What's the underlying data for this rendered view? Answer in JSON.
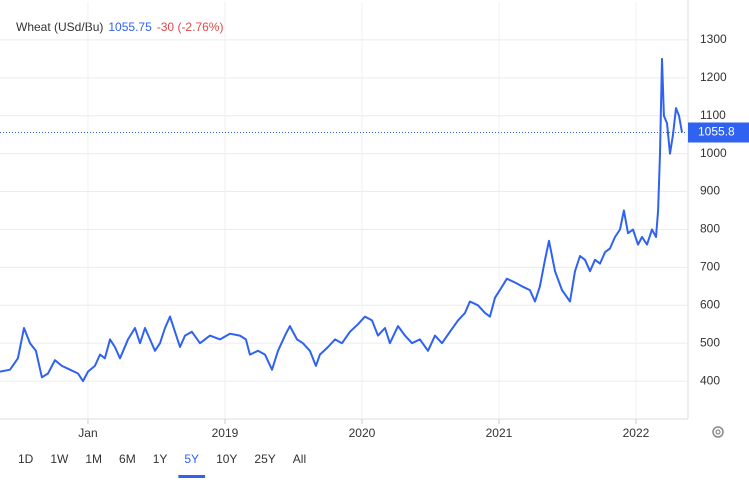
{
  "chart_data": {
    "type": "line",
    "title": "Wheat (USd/Bu)",
    "change": "-30 (-2.76%)",
    "last_value": {
      "value": 1055.75,
      "label": "1055.8"
    },
    "color": "#2f62f0",
    "x": [
      2017.358,
      2017.431,
      2017.489,
      2017.533,
      2017.577,
      2017.62,
      2017.664,
      2017.708,
      2017.759,
      2017.81,
      2017.869,
      2017.927,
      2017.964,
      2018.0,
      2018.051,
      2018.088,
      2018.124,
      2018.161,
      2018.197,
      2018.234,
      2018.292,
      2018.343,
      2018.38,
      2018.416,
      2018.453,
      2018.489,
      2018.526,
      2018.562,
      2018.599,
      2018.635,
      2018.672,
      2018.708,
      2018.759,
      2018.818,
      2018.891,
      2018.964,
      2019.036,
      2019.109,
      2019.153,
      2019.182,
      2019.241,
      2019.292,
      2019.343,
      2019.387,
      2019.438,
      2019.474,
      2019.526,
      2019.569,
      2019.62,
      2019.664,
      2019.693,
      2019.752,
      2019.803,
      2019.854,
      2019.912,
      2019.971,
      2020.022,
      2020.073,
      2020.117,
      2020.168,
      2020.204,
      2020.263,
      2020.314,
      2020.365,
      2020.423,
      2020.482,
      2020.533,
      2020.584,
      2020.642,
      2020.701,
      2020.752,
      2020.788,
      2020.847,
      2020.898,
      2020.934,
      2020.971,
      2021.007,
      2021.058,
      2021.117,
      2021.168,
      2021.226,
      2021.263,
      2021.299,
      2021.336,
      2021.365,
      2021.409,
      2021.46,
      2021.518,
      2021.555,
      2021.591,
      2021.628,
      2021.664,
      2021.701,
      2021.737,
      2021.774,
      2021.81,
      2021.847,
      2021.883,
      2021.912,
      2021.942,
      2021.978,
      2022.015,
      2022.044,
      2022.08,
      2022.117,
      2022.146,
      2022.161,
      2022.175,
      2022.19,
      2022.204,
      2022.226,
      2022.248,
      2022.27,
      2022.292,
      2022.314,
      2022.336
    ],
    "values": [
      425,
      430,
      460,
      540,
      500,
      480,
      410,
      420,
      455,
      440,
      430,
      420,
      400,
      425,
      440,
      470,
      460,
      510,
      490,
      460,
      510,
      540,
      500,
      540,
      510,
      480,
      500,
      540,
      570,
      530,
      490,
      520,
      530,
      500,
      520,
      510,
      525,
      520,
      510,
      470,
      480,
      470,
      430,
      480,
      520,
      545,
      510,
      500,
      480,
      440,
      470,
      490,
      510,
      500,
      530,
      550,
      570,
      560,
      520,
      540,
      500,
      545,
      520,
      500,
      510,
      480,
      520,
      500,
      530,
      560,
      580,
      610,
      600,
      580,
      570,
      620,
      640,
      670,
      660,
      650,
      640,
      610,
      650,
      720,
      770,
      690,
      640,
      610,
      690,
      730,
      720,
      690,
      720,
      710,
      740,
      750,
      780,
      800,
      850,
      790,
      800,
      760,
      780,
      760,
      800,
      780,
      850,
      1000,
      1250,
      1100,
      1080,
      1000,
      1050,
      1120,
      1100,
      1055.75
    ],
    "xlim": [
      2017.358,
      2022.365
    ],
    "xticks": [
      {
        "value": 2018,
        "label": "Jan"
      },
      2019,
      2020,
      2021,
      2022
    ],
    "ylim": [
      300,
      1400
    ],
    "yticks": [
      400,
      500,
      600,
      700,
      800,
      900,
      1000,
      1100,
      1200,
      1300
    ],
    "grid": true,
    "ranges": [
      "1D",
      "1W",
      "1M",
      "6M",
      "1Y",
      "5Y",
      "10Y",
      "25Y",
      "All"
    ],
    "active_range": 5
  }
}
